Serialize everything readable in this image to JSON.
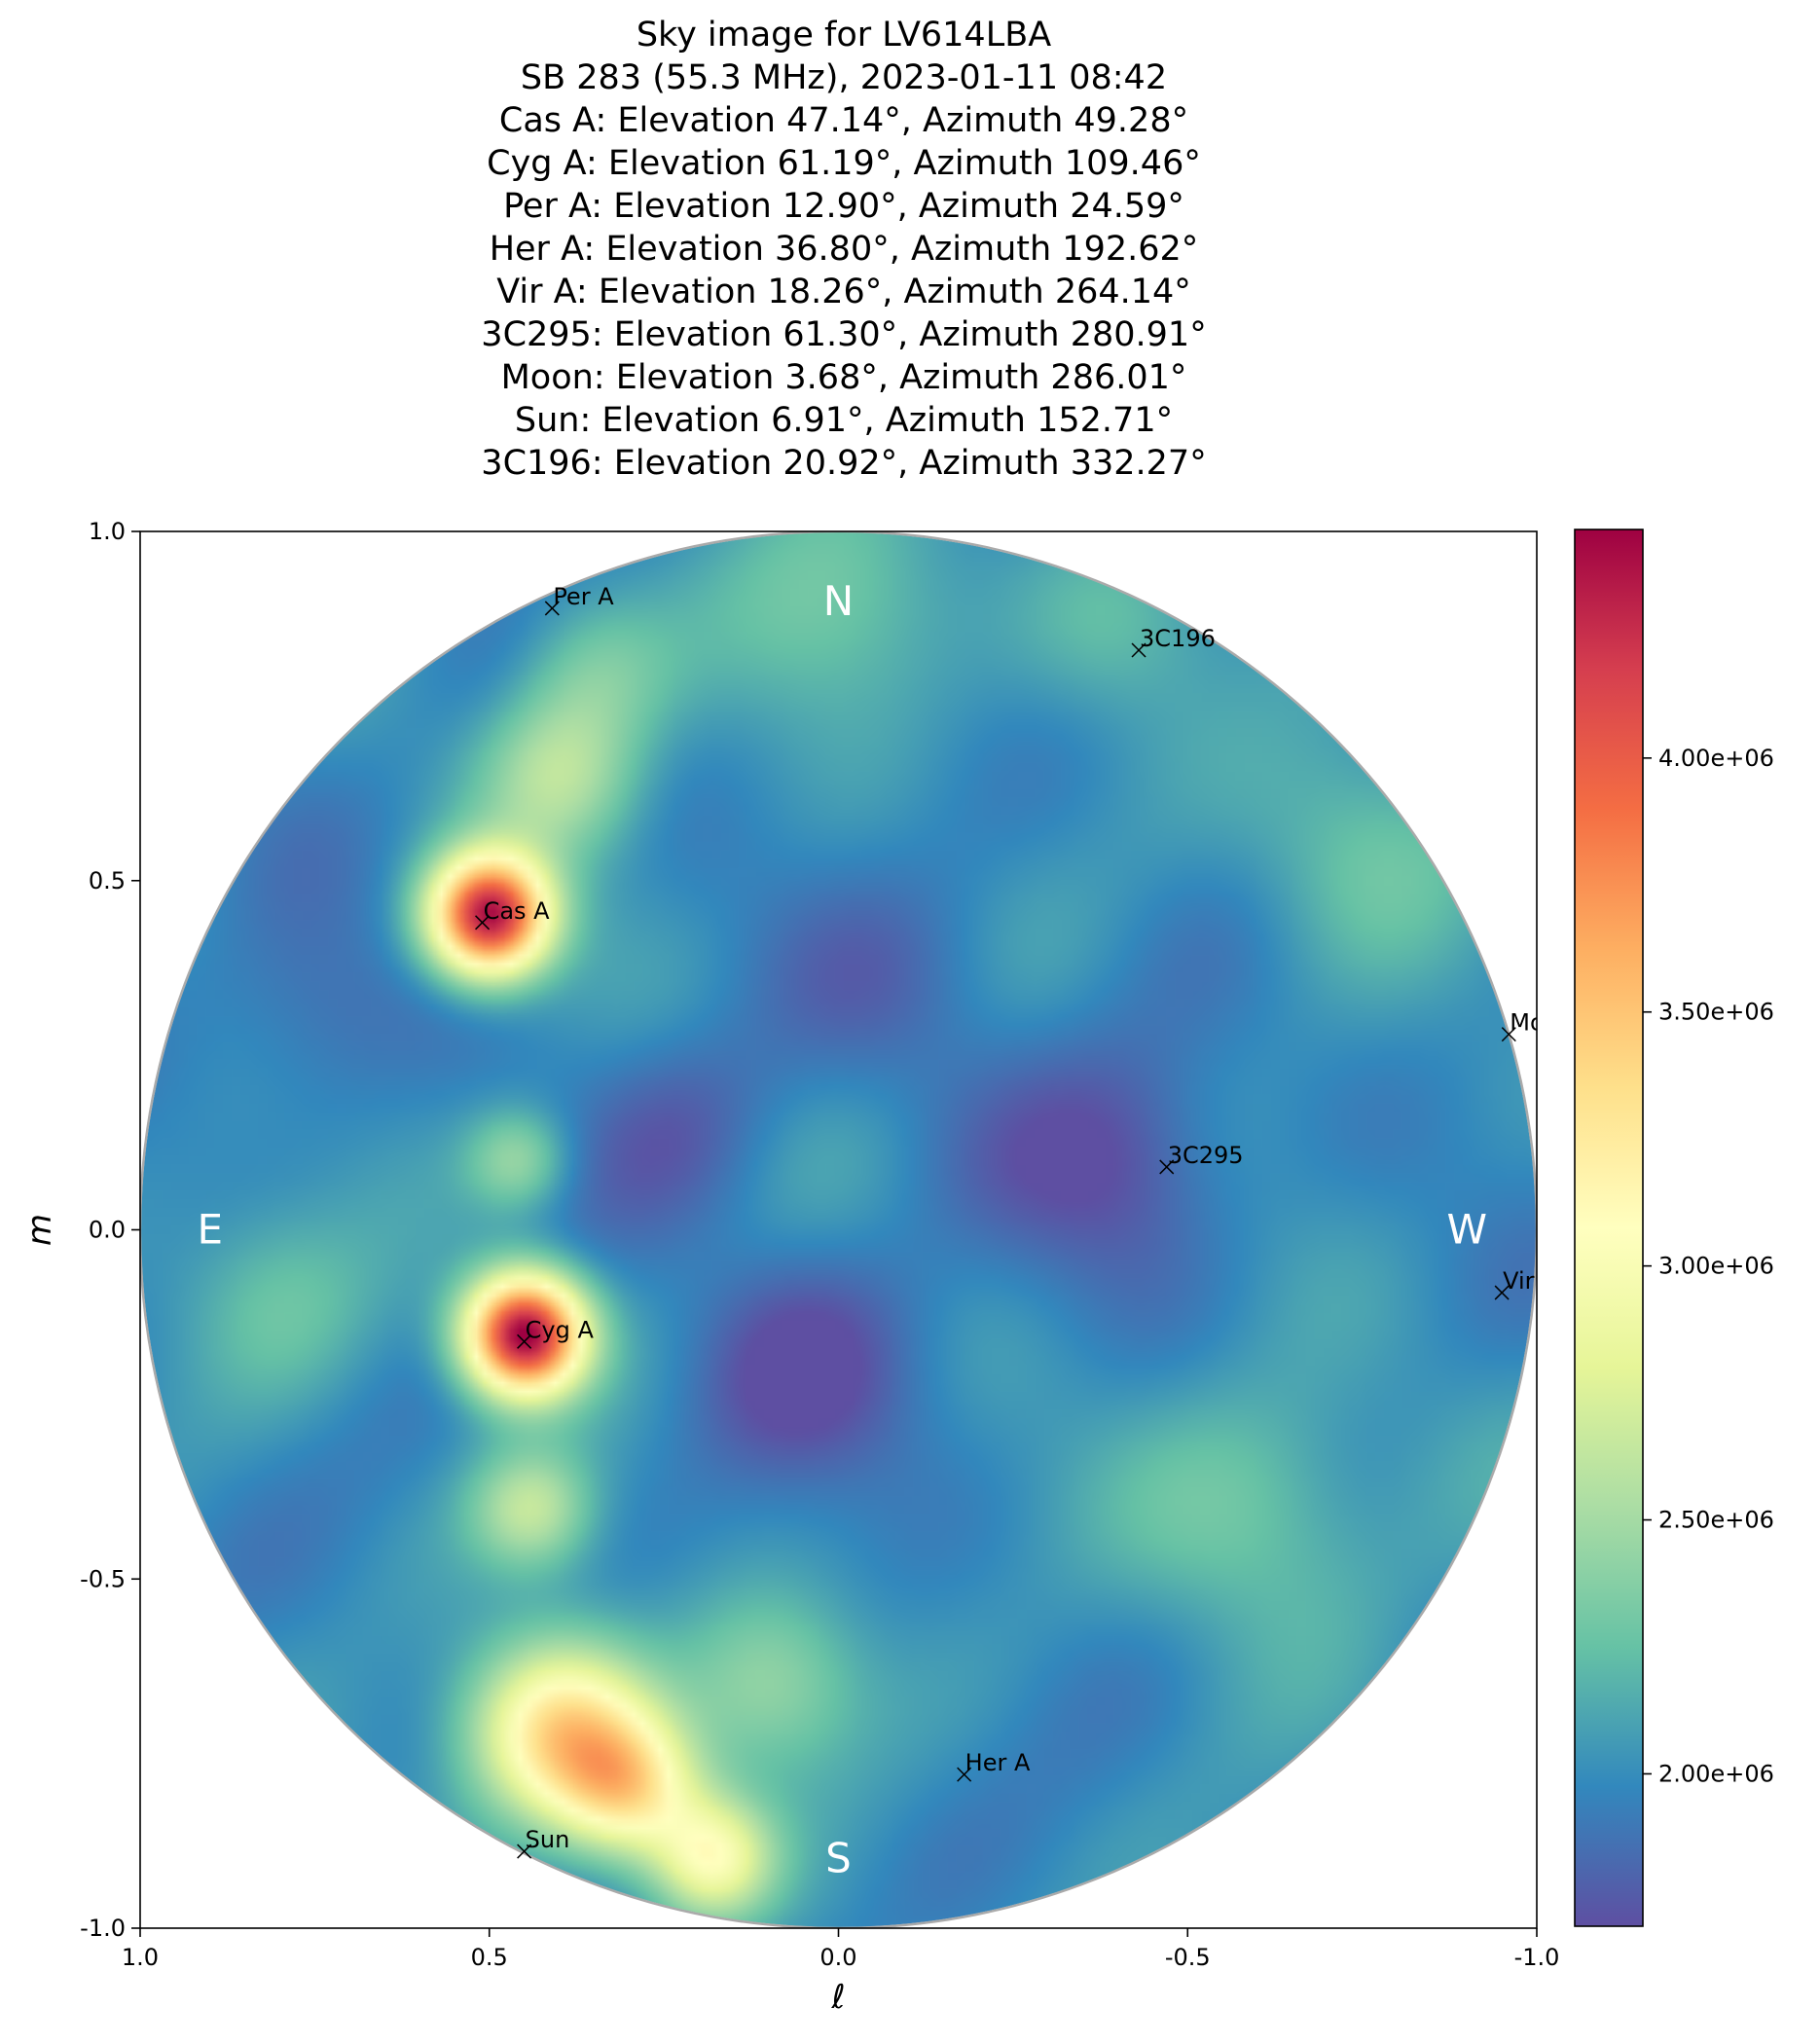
{
  "title_lines": [
    "Sky image for LV614LBA",
    "SB 283 (55.3 MHz), 2023-01-11 08:42",
    "Cas A: Elevation 47.14°, Azimuth 49.28°",
    "Cyg A: Elevation 61.19°, Azimuth 109.46°",
    "Per A: Elevation 12.90°, Azimuth 24.59°",
    "Her A: Elevation 36.80°, Azimuth 192.62°",
    "Vir A: Elevation 18.26°, Azimuth 264.14°",
    "3C295: Elevation 61.30°, Azimuth 280.91°",
    "Moon: Elevation 3.68°, Azimuth 286.01°",
    "Sun: Elevation 6.91°, Azimuth 152.71°",
    "3C196: Elevation 20.92°, Azimuth 332.27°"
  ],
  "chart_data": {
    "type": "heatmap",
    "xlabel": "ℓ",
    "ylabel": "m",
    "xlim": [
      1.0,
      -1.0
    ],
    "ylim": [
      -1.0,
      1.0
    ],
    "x_ticks": [
      1.0,
      0.5,
      0.0,
      -0.5,
      -1.0
    ],
    "x_tick_labels": [
      "1.0",
      "0.5",
      "0.0",
      "-0.5",
      "-1.0"
    ],
    "y_ticks": [
      1.0,
      0.5,
      0.0,
      -0.5,
      -1.0
    ],
    "y_tick_labels": [
      "1.0",
      "0.5",
      "0.0",
      "-0.5",
      "-1.0"
    ],
    "colormap": "Spectral_r",
    "colorbar": {
      "vmin": 1700000,
      "vmax": 4450000,
      "ticks": [
        2000000,
        2500000,
        3000000,
        3500000,
        4000000
      ],
      "tick_labels": [
        "2.00e+06",
        "2.50e+06",
        "3.00e+06",
        "3.50e+06",
        "4.00e+06"
      ]
    },
    "background_level": 2000000,
    "emission_features": [
      {
        "l": 0.5,
        "m": 0.45,
        "peak": 2350000,
        "width": 0.06
      },
      {
        "l": 0.45,
        "m": -0.15,
        "peak": 2500000,
        "width": 0.06
      },
      {
        "l": 0.4,
        "m": -0.72,
        "peak": 1350000,
        "width": 0.09
      },
      {
        "l": 0.3,
        "m": -0.8,
        "peak": 1050000,
        "width": 0.07
      },
      {
        "l": 0.18,
        "m": -0.9,
        "peak": 950000,
        "width": 0.06
      },
      {
        "l": 0.44,
        "m": -0.4,
        "peak": 600000,
        "width": 0.06
      },
      {
        "l": 0.46,
        "m": 0.1,
        "peak": 450000,
        "width": 0.05
      },
      {
        "l": 0.4,
        "m": 0.65,
        "peak": 550000,
        "width": 0.08
      },
      {
        "l": 0.35,
        "m": 0.8,
        "peak": 350000,
        "width": 0.08
      },
      {
        "l": 0.1,
        "m": -0.65,
        "peak": 450000,
        "width": 0.09
      },
      {
        "l": -0.6,
        "m": -0.4,
        "peak": 350000,
        "width": 0.13
      },
      {
        "l": -0.75,
        "m": 0.55,
        "peak": 300000,
        "width": 0.12
      },
      {
        "l": -0.4,
        "m": 0.87,
        "peak": 250000,
        "width": 0.1
      },
      {
        "l": 0.8,
        "m": -0.1,
        "peak": 250000,
        "width": 0.1
      },
      {
        "l": 0.0,
        "m": 0.9,
        "peak": 300000,
        "width": 0.12
      },
      {
        "l": 0.05,
        "m": -0.2,
        "peak": -300000,
        "width": 0.12
      },
      {
        "l": -0.4,
        "m": 0.1,
        "peak": -300000,
        "width": 0.12
      },
      {
        "l": 0.22,
        "m": 0.15,
        "peak": -200000,
        "width": 0.1
      },
      {
        "l": -0.1,
        "m": 0.35,
        "peak": -150000,
        "width": 0.12
      },
      {
        "l": 0.75,
        "m": 0.3,
        "peak": -150000,
        "width": 0.1
      }
    ],
    "sources": [
      {
        "name": "Per A",
        "l": 0.41,
        "m": 0.89
      },
      {
        "name": "3C196",
        "l": -0.43,
        "m": 0.83
      },
      {
        "name": "Cas A",
        "l": 0.51,
        "m": 0.44
      },
      {
        "name": "Moon",
        "l": -0.96,
        "m": 0.28
      },
      {
        "name": "3C295",
        "l": -0.47,
        "m": 0.09
      },
      {
        "name": "Vir A",
        "l": -0.95,
        "m": -0.09
      },
      {
        "name": "Cyg A",
        "l": 0.45,
        "m": -0.16
      },
      {
        "name": "Her A",
        "l": -0.18,
        "m": -0.78
      },
      {
        "name": "Sun",
        "l": 0.45,
        "m": -0.89
      }
    ],
    "cardinal_labels": [
      {
        "text": "N",
        "l": 0.0,
        "m": 0.9
      },
      {
        "text": "E",
        "l": 0.9,
        "m": 0.0
      },
      {
        "text": "W",
        "l": -0.9,
        "m": 0.0
      },
      {
        "text": "S",
        "l": 0.0,
        "m": -0.9
      }
    ]
  }
}
